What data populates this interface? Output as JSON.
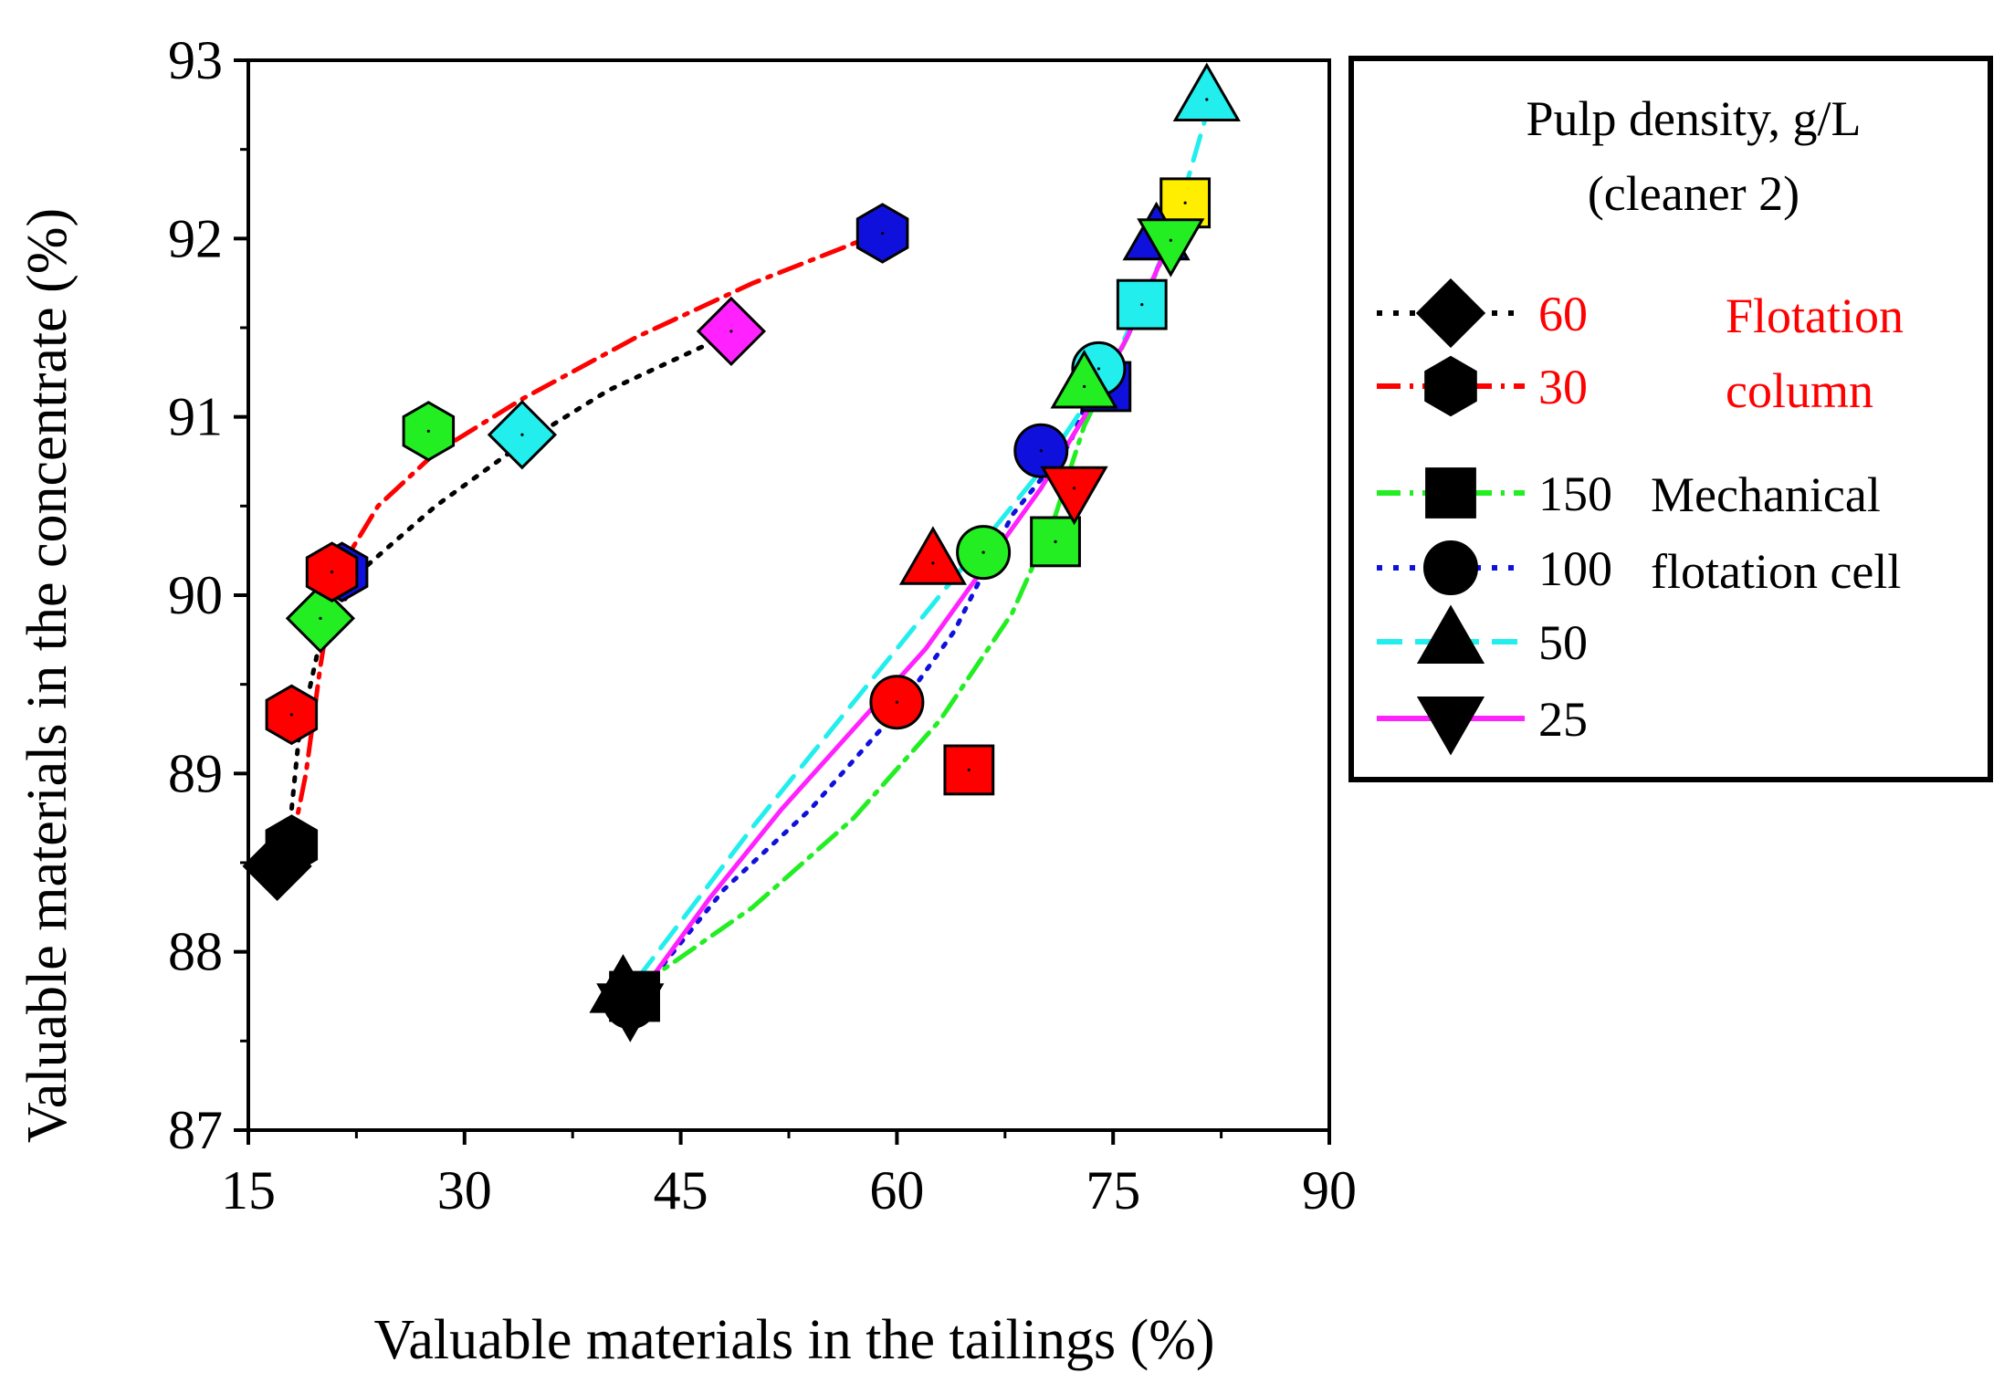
{
  "chart_data": {
    "type": "scatter",
    "xlabel": "Valuable materials in the tailings (%)",
    "ylabel": "Valuable materials in the concentrate (%)",
    "xlim": [
      15,
      90
    ],
    "ylim": [
      87,
      93
    ],
    "xticks": [
      "15",
      "30",
      "45",
      "60",
      "75",
      "90"
    ],
    "yticks": [
      "87",
      "88",
      "89",
      "90",
      "91",
      "92",
      "93"
    ],
    "colors": {
      "green": "#22ee22",
      "red": "#ff0000",
      "blue": "#1010dd",
      "cyan": "#22eeee",
      "magenta": "#ff22ff",
      "yellow": "#ffee00",
      "black": "#000000"
    },
    "legend": {
      "title_line1": "Pulp density, g/L",
      "title_line2": "(cleaner 2)",
      "group_column_line1": "Flotation",
      "group_column_line2": "column",
      "group_mech_line1": "Mechanical",
      "group_mech_line2": "flotation cell",
      "entries": [
        {
          "label": "60",
          "marker": "diamond",
          "line_color": "#000000",
          "dash": "dot",
          "text_color": "#ff0000"
        },
        {
          "label": "30",
          "marker": "hexagon",
          "line_color": "#ff0000",
          "dash": "dashdot",
          "text_color": "#ff0000"
        },
        {
          "label": "150",
          "marker": "square",
          "line_color": "#22ee22",
          "dash": "dashdot",
          "text_color": "#000000"
        },
        {
          "label": "100",
          "marker": "circle",
          "line_color": "#1010dd",
          "dash": "dot",
          "text_color": "#000000"
        },
        {
          "label": "50",
          "marker": "triangle-up",
          "line_color": "#22eeee",
          "dash": "dash",
          "text_color": "#000000"
        },
        {
          "label": "25",
          "marker": "triangle-down",
          "line_color": "#ff22ff",
          "dash": "solid",
          "text_color": "#000000"
        }
      ]
    },
    "series": [
      {
        "name": "60",
        "group": "Flotation column",
        "marker": "diamond",
        "line_color": "#000000",
        "dash": "dot",
        "curve": [
          [
            17.5,
            88.5
          ],
          [
            18,
            88.8
          ],
          [
            18.5,
            89.2
          ],
          [
            20,
            89.75
          ],
          [
            23,
            90.15
          ],
          [
            28,
            90.5
          ],
          [
            34,
            90.85
          ],
          [
            40,
            91.15
          ],
          [
            48,
            91.45
          ]
        ],
        "points": [
          {
            "x": 17,
            "y": 88.48,
            "color": "#000000"
          },
          {
            "x": 20,
            "y": 89.87,
            "color": "#22ee22"
          },
          {
            "x": 34,
            "y": 90.9,
            "color": "#22eeee"
          },
          {
            "x": 48.5,
            "y": 91.48,
            "color": "#ff22ff"
          }
        ]
      },
      {
        "name": "30",
        "group": "Flotation column",
        "marker": "hexagon",
        "line_color": "#ff0000",
        "dash": "dashdot",
        "curve": [
          [
            18,
            88.6
          ],
          [
            19,
            89.0
          ],
          [
            20,
            89.6
          ],
          [
            21,
            90.1
          ],
          [
            24,
            90.5
          ],
          [
            28,
            90.8
          ],
          [
            34,
            91.1
          ],
          [
            42,
            91.45
          ],
          [
            50,
            91.75
          ],
          [
            58.5,
            92.02
          ]
        ],
        "points": [
          {
            "x": 18,
            "y": 88.6,
            "color": "#000000"
          },
          {
            "x": 18,
            "y": 89.33,
            "color": "#ff0000"
          },
          {
            "x": 21.5,
            "y": 90.13,
            "color": "#1010dd"
          },
          {
            "x": 20.8,
            "y": 90.13,
            "color": "#ff0000"
          },
          {
            "x": 27.5,
            "y": 90.92,
            "color": "#22ee22"
          },
          {
            "x": 59,
            "y": 92.03,
            "color": "#1010dd"
          }
        ]
      },
      {
        "name": "150",
        "group": "Mechanical flotation cell",
        "marker": "square",
        "line_color": "#22ee22",
        "dash": "dashdot",
        "curve": [
          [
            42,
            87.8
          ],
          [
            50,
            88.25
          ],
          [
            57,
            88.75
          ],
          [
            63,
            89.3
          ],
          [
            68,
            89.9
          ],
          [
            71,
            90.45
          ],
          [
            73,
            90.95
          ],
          [
            76,
            91.45
          ],
          [
            78.5,
            91.9
          ],
          [
            80,
            92.2
          ]
        ],
        "points": [
          {
            "x": 41.8,
            "y": 87.75,
            "color": "#000000"
          },
          {
            "x": 65,
            "y": 89.02,
            "color": "#ff0000"
          },
          {
            "x": 71,
            "y": 90.3,
            "color": "#22ee22"
          },
          {
            "x": 74.5,
            "y": 91.17,
            "color": "#1010dd"
          },
          {
            "x": 77,
            "y": 91.63,
            "color": "#22eeee"
          },
          {
            "x": 80,
            "y": 92.2,
            "color": "#ffee00"
          }
        ]
      },
      {
        "name": "100",
        "group": "Mechanical flotation cell",
        "marker": "circle",
        "line_color": "#1010dd",
        "dash": "dot",
        "curve": [
          [
            42,
            87.75
          ],
          [
            48,
            88.35
          ],
          [
            54,
            88.8
          ],
          [
            60,
            89.35
          ],
          [
            64,
            89.8
          ],
          [
            68,
            90.45
          ],
          [
            72,
            90.85
          ],
          [
            74,
            91.25
          ]
        ],
        "points": [
          {
            "x": 41.5,
            "y": 87.72,
            "color": "#000000"
          },
          {
            "x": 60,
            "y": 89.4,
            "color": "#ff0000"
          },
          {
            "x": 66,
            "y": 90.24,
            "color": "#22ee22"
          },
          {
            "x": 70,
            "y": 90.81,
            "color": "#1010dd"
          },
          {
            "x": 74,
            "y": 91.27,
            "color": "#22eeee"
          }
        ]
      },
      {
        "name": "50",
        "group": "Mechanical flotation cell",
        "marker": "triangle-up",
        "line_color": "#22eeee",
        "dash": "dash",
        "curve": [
          [
            42,
            87.85
          ],
          [
            50,
            88.7
          ],
          [
            58,
            89.5
          ],
          [
            65,
            90.2
          ],
          [
            70,
            90.7
          ],
          [
            75,
            91.3
          ],
          [
            79,
            92.0
          ],
          [
            81.5,
            92.7
          ]
        ],
        "points": [
          {
            "x": 41,
            "y": 87.78,
            "color": "#000000"
          },
          {
            "x": 62.5,
            "y": 90.18,
            "color": "#ff0000"
          },
          {
            "x": 73,
            "y": 91.17,
            "color": "#22ee22"
          },
          {
            "x": 78,
            "y": 92.0,
            "color": "#1010dd"
          },
          {
            "x": 81.5,
            "y": 92.78,
            "color": "#22eeee"
          }
        ]
      },
      {
        "name": "25",
        "group": "Mechanical flotation cell",
        "marker": "triangle-down",
        "line_color": "#ff22ff",
        "dash": "solid",
        "curve": [
          [
            42.5,
            87.8
          ],
          [
            47,
            88.3
          ],
          [
            52,
            88.8
          ],
          [
            57,
            89.25
          ],
          [
            62,
            89.7
          ],
          [
            66,
            90.15
          ],
          [
            70,
            90.6
          ],
          [
            73,
            91.0
          ],
          [
            76,
            91.45
          ],
          [
            79,
            92.0
          ]
        ],
        "points": [
          {
            "x": 41.5,
            "y": 87.7,
            "color": "#000000"
          },
          {
            "x": 72.3,
            "y": 90.6,
            "color": "#ff0000"
          },
          {
            "x": 79,
            "y": 91.99,
            "color": "#22ee22"
          }
        ]
      }
    ]
  }
}
